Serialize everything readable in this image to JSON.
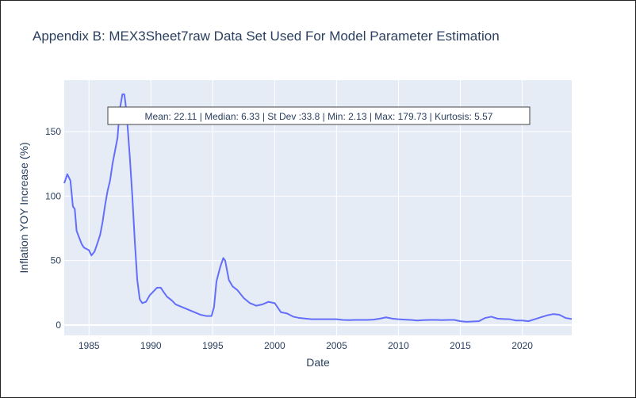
{
  "chart_data": {
    "type": "line",
    "title": "Appendix B: MEX3Sheet7raw Data Set Used For Model Parameter Estimation",
    "xlabel": "Date",
    "ylabel": "Inflation YOY Increase (%)",
    "xlim": [
      1983.0,
      2024.0
    ],
    "ylim": [
      -8,
      190
    ],
    "x_ticks": [
      1985,
      1990,
      1995,
      2000,
      2005,
      2010,
      2015,
      2020
    ],
    "y_ticks": [
      0,
      50,
      100,
      150
    ],
    "grid": true,
    "line_color": "#636efa",
    "plot_bg": "#e5ecf6",
    "annotation": "Mean: 22.11 | Median: 6.33 | St Dev :33.8 | Min: 2.13 | Max: 179.73 | Kurtosis: 5.57",
    "series": [
      {
        "x": [
          1983.0,
          1983.25,
          1983.5,
          1983.7,
          1983.85,
          1984.0,
          1984.2,
          1984.4,
          1984.6,
          1984.8,
          1985.0,
          1985.2,
          1985.45,
          1985.7,
          1985.9,
          1986.1,
          1986.3,
          1986.5,
          1986.7,
          1986.9,
          1987.1,
          1987.3,
          1987.5,
          1987.7,
          1987.85,
          1987.95,
          1988.05,
          1988.15,
          1988.3,
          1988.5,
          1988.7,
          1988.9,
          1989.1,
          1989.3,
          1989.6,
          1989.9,
          1990.2,
          1990.5,
          1990.8,
          1991.0,
          1991.3,
          1991.7,
          1992.0,
          1992.5,
          1993.0,
          1993.5,
          1994.0,
          1994.5,
          1994.9,
          1995.1,
          1995.3,
          1995.6,
          1995.85,
          1996.0,
          1996.3,
          1996.6,
          1997.0,
          1997.5,
          1998.0,
          1998.5,
          1999.0,
          1999.5,
          2000.0,
          2000.5,
          2001.0,
          2001.5,
          2002.0,
          2002.5,
          2003.0,
          2003.5,
          2004.0,
          2004.5,
          2005.0,
          2005.5,
          2006.0,
          2006.5,
          2007.0,
          2007.5,
          2008.0,
          2008.5,
          2009.0,
          2009.5,
          2010.0,
          2010.5,
          2011.0,
          2011.5,
          2012.0,
          2012.5,
          2013.0,
          2013.5,
          2014.0,
          2014.5,
          2015.0,
          2015.5,
          2016.0,
          2016.5,
          2017.0,
          2017.5,
          2018.0,
          2018.5,
          2019.0,
          2019.5,
          2020.0,
          2020.5,
          2021.0,
          2021.5,
          2022.0,
          2022.5,
          2023.0,
          2023.5,
          2024.0
        ],
        "y": [
          110,
          117,
          112,
          92,
          90,
          73,
          68,
          63,
          60,
          59,
          58,
          54,
          57,
          64,
          70,
          80,
          93,
          104,
          112,
          125,
          135,
          145,
          168,
          179,
          179,
          172,
          162,
          150,
          130,
          100,
          65,
          35,
          20,
          17,
          18,
          23,
          26,
          29,
          29,
          26,
          22,
          19,
          16,
          14,
          12,
          10,
          8,
          7,
          7,
          14,
          34,
          45,
          52,
          50,
          35,
          30,
          27,
          21,
          17,
          15,
          16,
          18,
          17,
          10,
          9,
          6.5,
          5.5,
          5,
          4.5,
          4.5,
          4.5,
          4.5,
          4.5,
          4,
          3.8,
          4,
          4,
          4,
          4.2,
          5,
          6,
          5,
          4.5,
          4.2,
          4,
          3.5,
          3.8,
          4,
          4,
          3.8,
          4,
          4,
          3,
          2.5,
          2.8,
          3,
          5.5,
          6.5,
          5,
          4.7,
          4.5,
          3.5,
          3.5,
          3,
          4.5,
          6,
          7.5,
          8.5,
          8,
          5.5,
          4.7
        ]
      }
    ]
  }
}
